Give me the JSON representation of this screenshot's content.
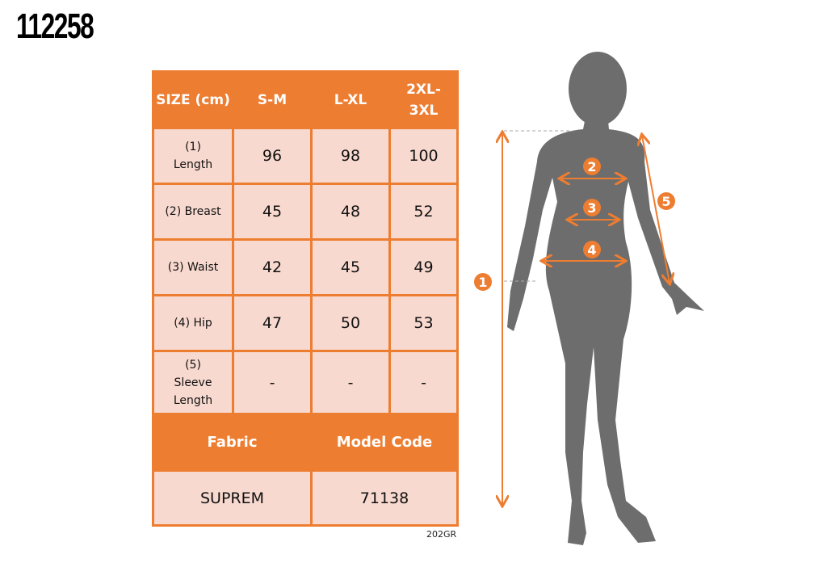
{
  "product_code": "112258",
  "table": {
    "headers": [
      "SIZE (cm)",
      "S-M",
      "L-XL",
      "2XL-3XL"
    ],
    "rows": [
      {
        "label": "(1) Length",
        "values": [
          "96",
          "98",
          "100"
        ]
      },
      {
        "label": "(2) Breast",
        "values": [
          "45",
          "48",
          "52"
        ]
      },
      {
        "label": "(3) Waist",
        "values": [
          "42",
          "45",
          "49"
        ]
      },
      {
        "label": "(4) Hip",
        "values": [
          "47",
          "50",
          "53"
        ]
      },
      {
        "label": "(5) Sleeve Length",
        "values": [
          "-",
          "-",
          "-"
        ]
      }
    ],
    "footer_headers": [
      "Fabric",
      "Model Code"
    ],
    "footer_values": [
      "SUPREM",
      "71138"
    ]
  },
  "footnote": "202GR",
  "diagram": {
    "markers": [
      "1",
      "2",
      "3",
      "4",
      "5"
    ],
    "accent": "#ed7d31",
    "silhouette_color": "#6d6d6d"
  }
}
